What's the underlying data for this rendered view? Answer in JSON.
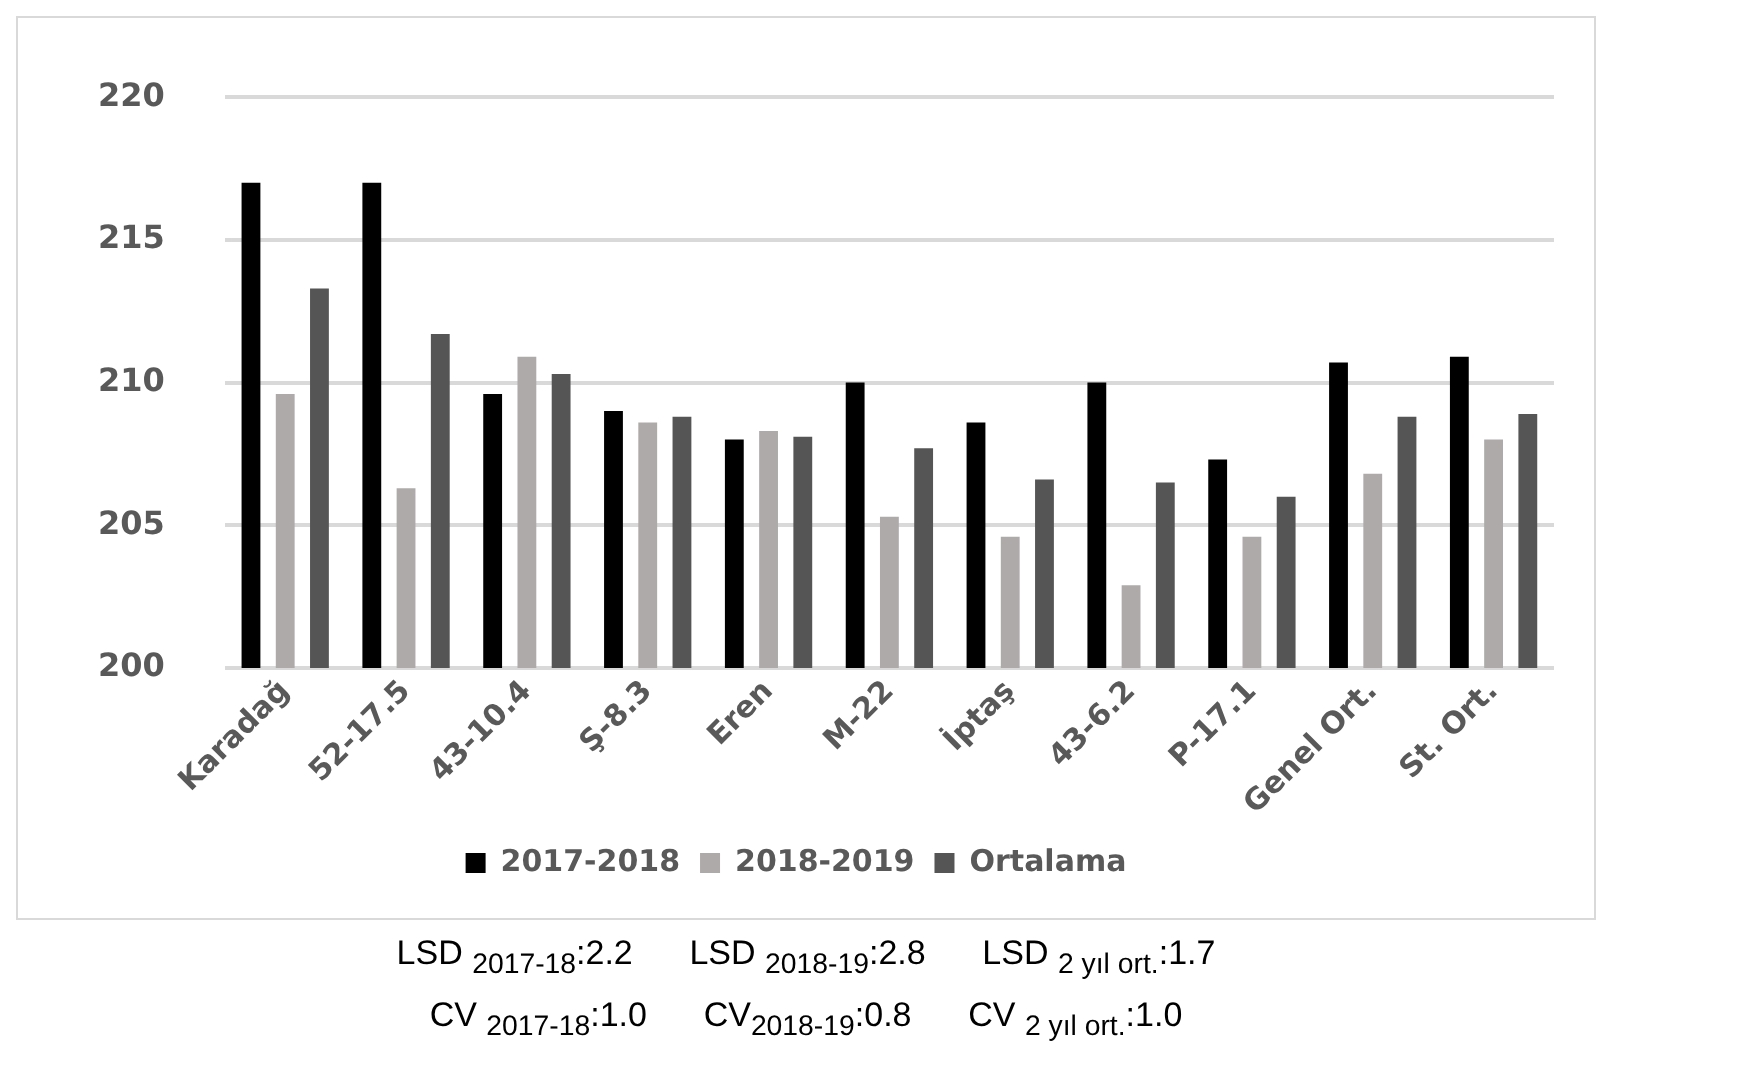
{
  "chart_data": {
    "type": "bar",
    "categories": [
      "Karadağ",
      "52-17.5",
      "43-10.4",
      "Ş-8.3",
      "Eren",
      "M-22",
      "İptaş",
      "43-6.2",
      "P-17.1",
      "Genel Ort.",
      "St. Ort."
    ],
    "series": [
      {
        "name": "2017-2018",
        "color": "#000000",
        "values": [
          217.0,
          217.0,
          209.6,
          209.0,
          208.0,
          210.0,
          208.6,
          210.0,
          207.3,
          210.7,
          210.9
        ]
      },
      {
        "name": "2018-2019",
        "color": "#aeaaaa",
        "values": [
          209.6,
          206.3,
          210.9,
          208.6,
          208.3,
          205.3,
          204.6,
          202.9,
          204.6,
          206.8,
          208.0
        ]
      },
      {
        "name": "Ortalama",
        "color": "#555555",
        "values": [
          213.3,
          211.7,
          210.3,
          208.8,
          208.1,
          207.7,
          206.6,
          206.5,
          206.0,
          208.8,
          208.9
        ]
      }
    ],
    "ylim": [
      200,
      220
    ],
    "yticks": [
      200,
      205,
      210,
      215,
      220
    ],
    "grid": "y",
    "legend": "bottom",
    "annotations": [
      "LSD $_{2017-18}$:2.2      LSD $_{2018-19}$:2.8      LSD $_{2 yıl ort.}$:1.7",
      "CV $_{2017-18}$:1.0      CV$_{2018-19}$:0.8      CV $_{2 yıl ort.}$:1.0"
    ]
  }
}
